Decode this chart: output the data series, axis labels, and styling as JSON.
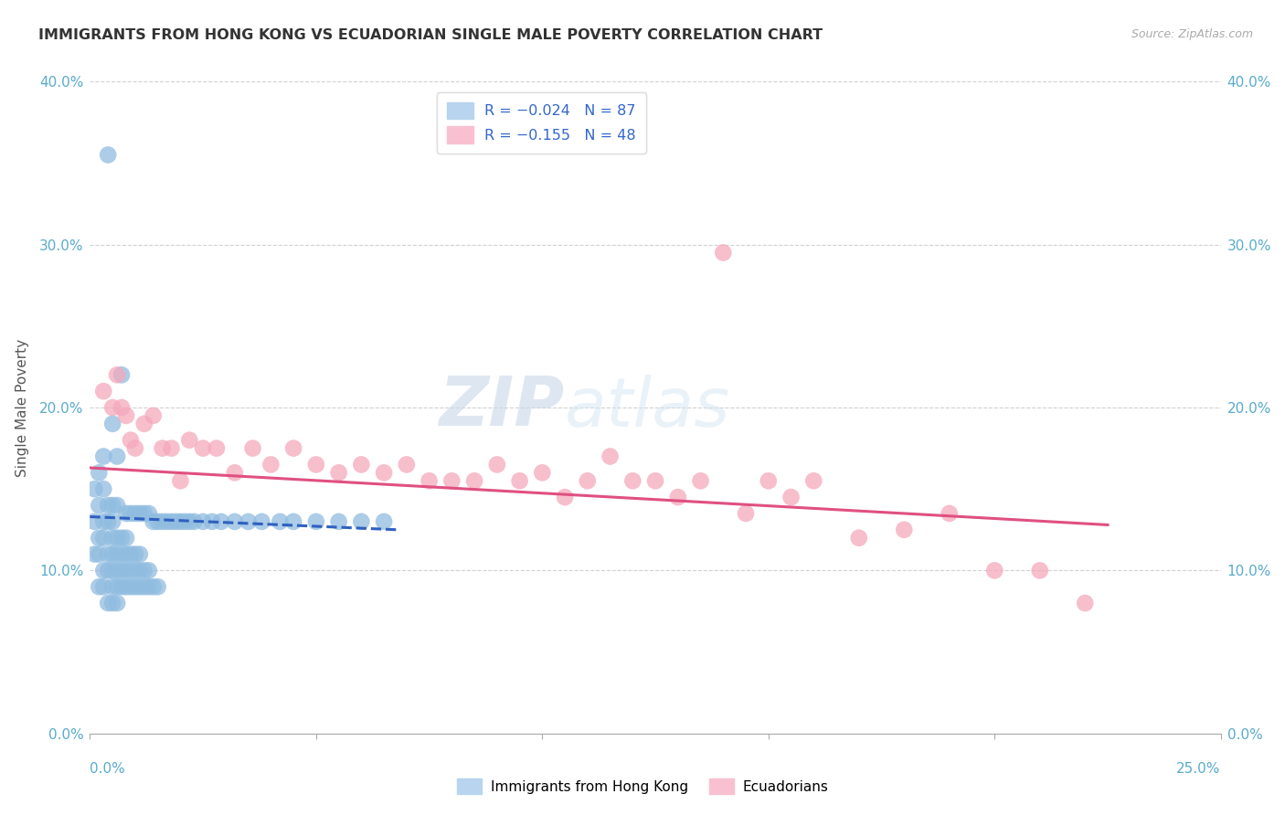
{
  "title": "IMMIGRANTS FROM HONG KONG VS ECUADORIAN SINGLE MALE POVERTY CORRELATION CHART",
  "source": "Source: ZipAtlas.com",
  "ylabel": "Single Male Poverty",
  "legend_labels": [
    "Immigrants from Hong Kong",
    "Ecuadorians"
  ],
  "legend_r": [
    "R = −0.024",
    "R = −0.155"
  ],
  "legend_n": [
    "N = 87",
    "N = 48"
  ],
  "hk_color": "#90bce0",
  "ec_color": "#f5a8bc",
  "hk_line_color": "#3060c0",
  "ec_line_color": "#e05080",
  "watermark_zip": "ZIP",
  "watermark_atlas": "atlas",
  "xlim": [
    0.0,
    0.25
  ],
  "ylim": [
    0.0,
    0.4
  ],
  "yticks": [
    0.0,
    0.1,
    0.2,
    0.3,
    0.4
  ],
  "hk_x": [
    0.001,
    0.001,
    0.001,
    0.002,
    0.002,
    0.002,
    0.002,
    0.002,
    0.003,
    0.003,
    0.003,
    0.003,
    0.003,
    0.003,
    0.004,
    0.004,
    0.004,
    0.004,
    0.004,
    0.004,
    0.005,
    0.005,
    0.005,
    0.005,
    0.005,
    0.005,
    0.005,
    0.005,
    0.006,
    0.006,
    0.006,
    0.006,
    0.006,
    0.006,
    0.006,
    0.007,
    0.007,
    0.007,
    0.007,
    0.007,
    0.008,
    0.008,
    0.008,
    0.008,
    0.008,
    0.009,
    0.009,
    0.009,
    0.009,
    0.01,
    0.01,
    0.01,
    0.01,
    0.011,
    0.011,
    0.011,
    0.011,
    0.012,
    0.012,
    0.012,
    0.013,
    0.013,
    0.013,
    0.014,
    0.014,
    0.015,
    0.015,
    0.016,
    0.017,
    0.018,
    0.019,
    0.02,
    0.021,
    0.022,
    0.023,
    0.025,
    0.027,
    0.029,
    0.032,
    0.035,
    0.038,
    0.042,
    0.045,
    0.05,
    0.055,
    0.06,
    0.065
  ],
  "hk_y": [
    0.11,
    0.13,
    0.15,
    0.09,
    0.11,
    0.12,
    0.14,
    0.16,
    0.09,
    0.1,
    0.12,
    0.13,
    0.15,
    0.17,
    0.08,
    0.1,
    0.11,
    0.13,
    0.14,
    0.355,
    0.08,
    0.09,
    0.1,
    0.11,
    0.12,
    0.13,
    0.14,
    0.19,
    0.08,
    0.09,
    0.1,
    0.11,
    0.12,
    0.14,
    0.17,
    0.09,
    0.1,
    0.11,
    0.12,
    0.22,
    0.09,
    0.1,
    0.11,
    0.12,
    0.135,
    0.09,
    0.1,
    0.11,
    0.135,
    0.09,
    0.1,
    0.11,
    0.135,
    0.09,
    0.1,
    0.11,
    0.135,
    0.09,
    0.1,
    0.135,
    0.09,
    0.1,
    0.135,
    0.09,
    0.13,
    0.09,
    0.13,
    0.13,
    0.13,
    0.13,
    0.13,
    0.13,
    0.13,
    0.13,
    0.13,
    0.13,
    0.13,
    0.13,
    0.13,
    0.13,
    0.13,
    0.13,
    0.13,
    0.13,
    0.13,
    0.13,
    0.13
  ],
  "ec_x": [
    0.003,
    0.005,
    0.006,
    0.007,
    0.008,
    0.009,
    0.01,
    0.012,
    0.014,
    0.016,
    0.018,
    0.02,
    0.022,
    0.025,
    0.028,
    0.032,
    0.036,
    0.04,
    0.045,
    0.05,
    0.055,
    0.06,
    0.065,
    0.07,
    0.075,
    0.08,
    0.085,
    0.09,
    0.095,
    0.1,
    0.105,
    0.11,
    0.115,
    0.12,
    0.125,
    0.13,
    0.135,
    0.14,
    0.145,
    0.15,
    0.155,
    0.16,
    0.17,
    0.18,
    0.19,
    0.2,
    0.21,
    0.22
  ],
  "ec_y": [
    0.21,
    0.2,
    0.22,
    0.2,
    0.195,
    0.18,
    0.175,
    0.19,
    0.195,
    0.175,
    0.175,
    0.155,
    0.18,
    0.175,
    0.175,
    0.16,
    0.175,
    0.165,
    0.175,
    0.165,
    0.16,
    0.165,
    0.16,
    0.165,
    0.155,
    0.155,
    0.155,
    0.165,
    0.155,
    0.16,
    0.145,
    0.155,
    0.17,
    0.155,
    0.155,
    0.145,
    0.155,
    0.295,
    0.135,
    0.155,
    0.145,
    0.155,
    0.12,
    0.125,
    0.135,
    0.1,
    0.1,
    0.08
  ],
  "hk_trend_x": [
    0.0,
    0.068
  ],
  "hk_trend_y": [
    0.133,
    0.125
  ],
  "ec_trend_x": [
    0.0,
    0.225
  ],
  "ec_trend_y": [
    0.163,
    0.128
  ]
}
